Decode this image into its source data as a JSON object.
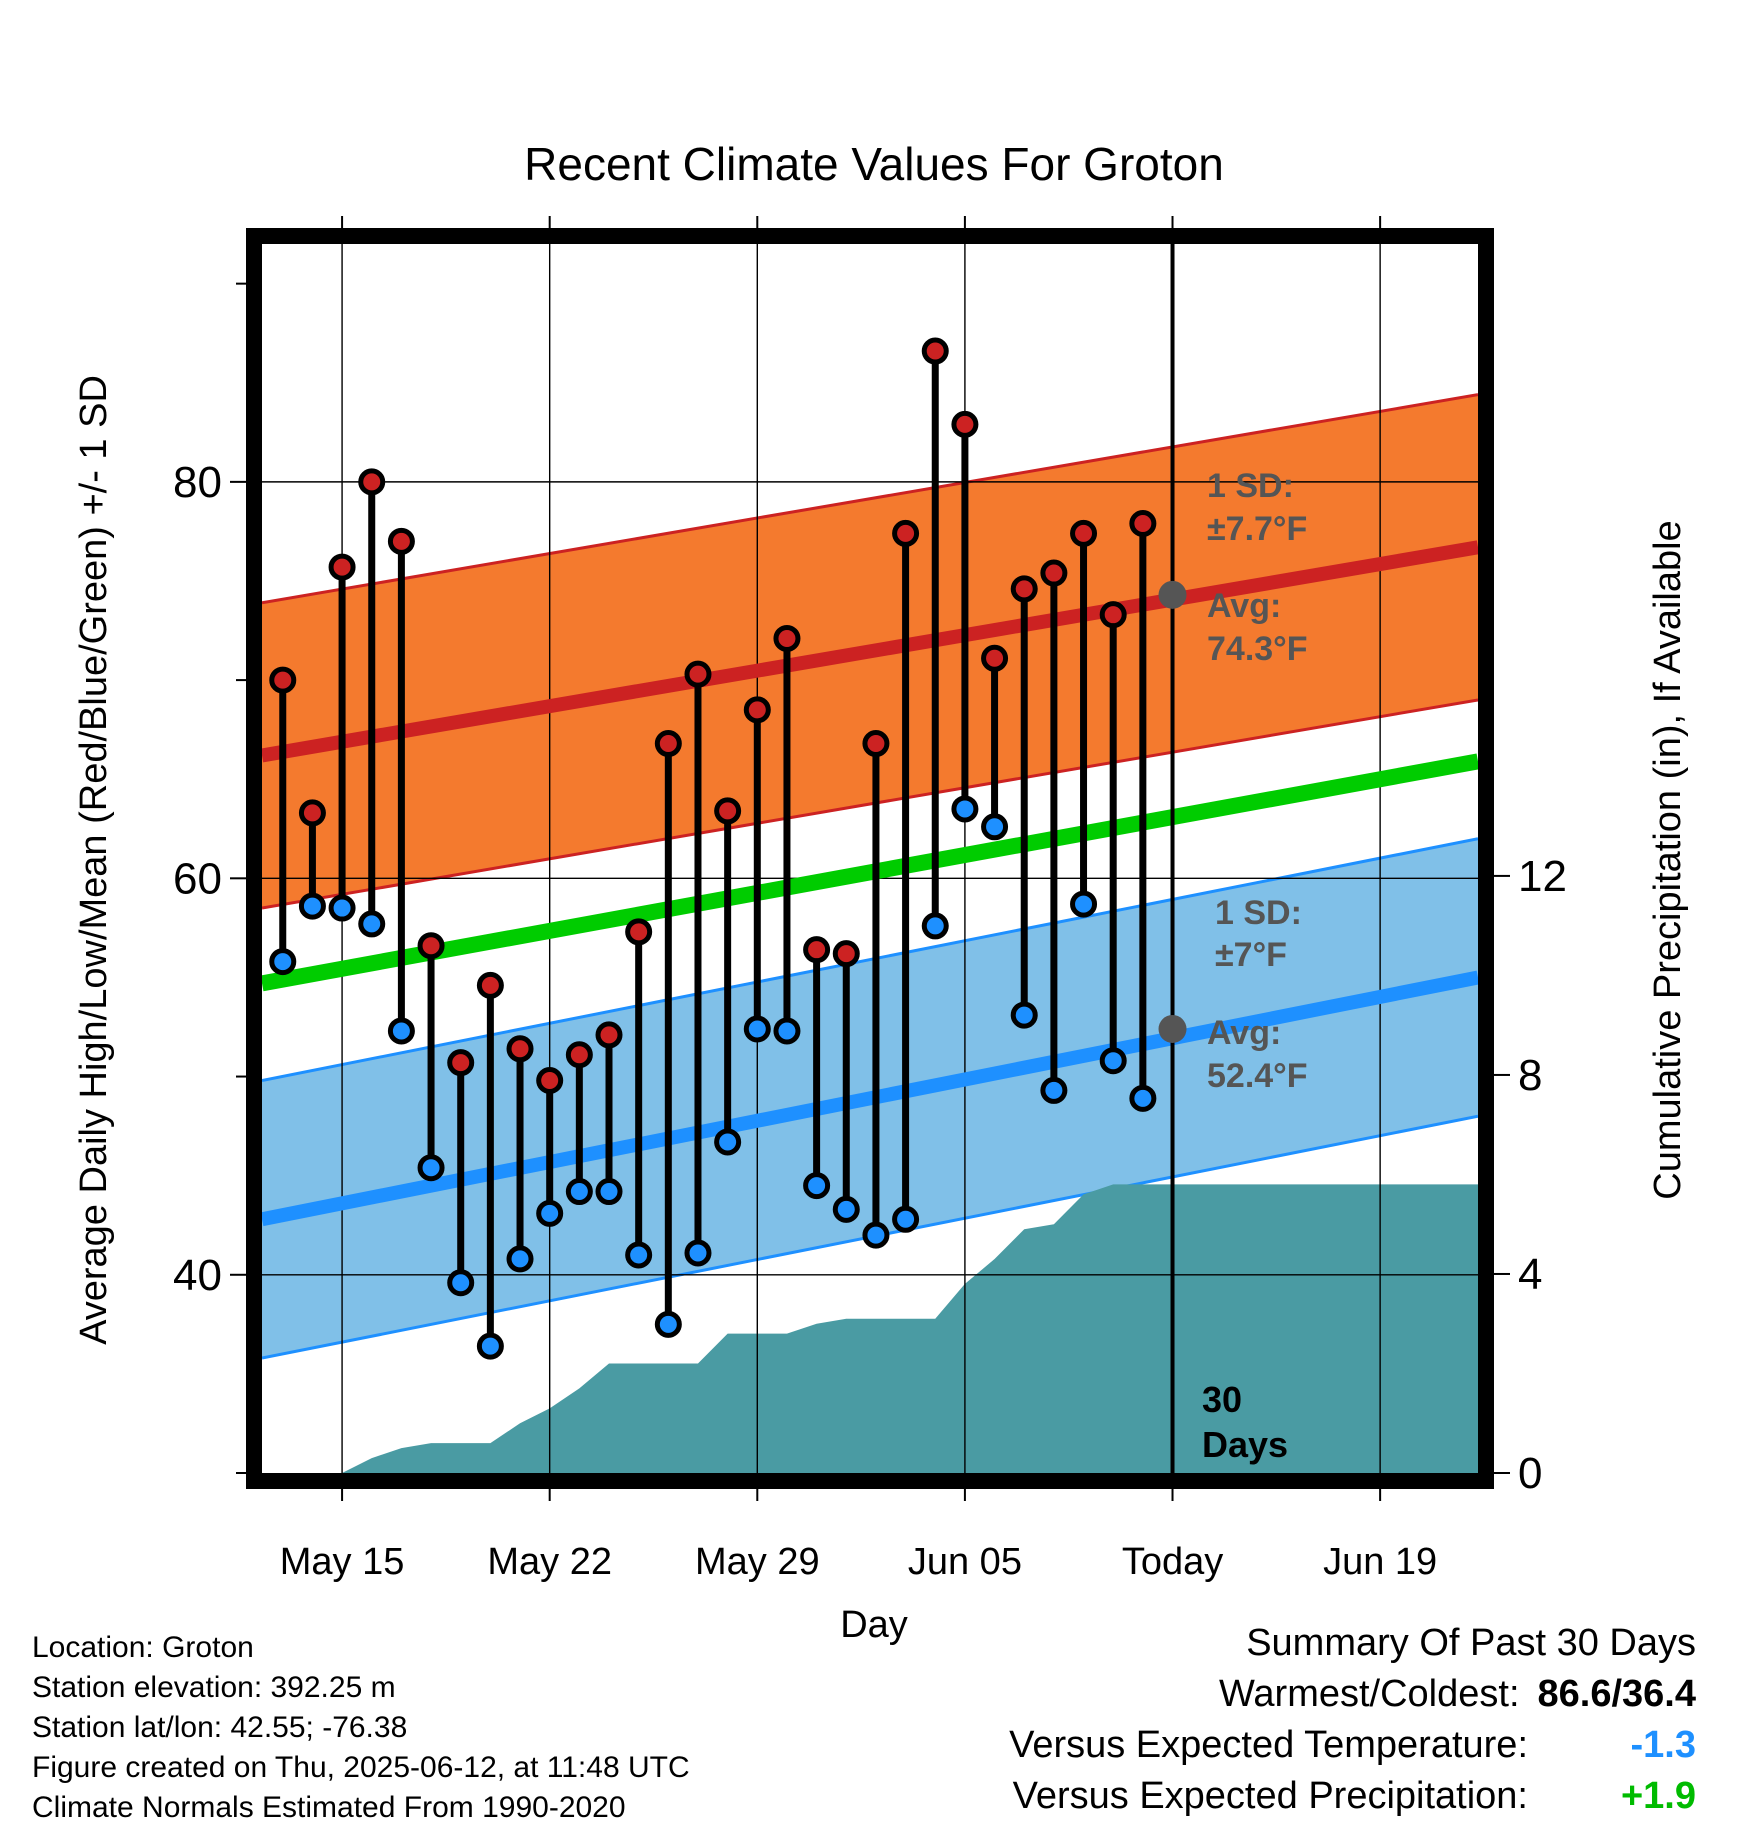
{
  "chart_data": {
    "type": "line",
    "title": "Recent Climate Values For Groton",
    "xlabel": "Day",
    "ylabel": "Average Daily High/Low/Mean (Red/Blue/Green) +/- 1 SD",
    "y2label": "Cumulative Precipitation (in), If Available",
    "x_ticks": [
      {
        "day": 15,
        "label": "May 15"
      },
      {
        "day": 22,
        "label": "May 22"
      },
      {
        "day": 29,
        "label": "May 29"
      },
      {
        "day": 36,
        "label": "Jun 05"
      },
      {
        "day": 43,
        "label": "Today"
      },
      {
        "day": 50,
        "label": "Jun 19"
      }
    ],
    "xlim": [
      12.3,
      53.3
    ],
    "ylim": [
      30,
      92
    ],
    "y_ticks": [
      40,
      60,
      80
    ],
    "y_minor_ticks": [
      30,
      50,
      70,
      90
    ],
    "y2lim": [
      0,
      24.7
    ],
    "y2_ticks": [
      0,
      4,
      8,
      12
    ],
    "grid": true,
    "today_day": 43,
    "high_obs": {
      "name": "High",
      "day": [
        13,
        14,
        15,
        16,
        17,
        18,
        19,
        20,
        21,
        22,
        23,
        24,
        25,
        26,
        27,
        28,
        29,
        30,
        31,
        32,
        33,
        34,
        35,
        36,
        37,
        38,
        39,
        40,
        41,
        42
      ],
      "values": [
        70,
        63.3,
        75.7,
        80,
        77,
        56.6,
        50.7,
        54.6,
        51.4,
        49.8,
        51.1,
        52.1,
        57.3,
        66.8,
        70.3,
        63.4,
        68.5,
        72.1,
        56.4,
        56.2,
        66.8,
        77.4,
        86.6,
        82.9,
        71.1,
        74.6,
        75.4,
        77.4,
        73.3,
        77.9
      ]
    },
    "low_obs": {
      "name": "Low",
      "day": [
        13,
        14,
        15,
        16,
        17,
        18,
        19,
        20,
        21,
        22,
        23,
        24,
        25,
        26,
        27,
        28,
        29,
        30,
        31,
        32,
        33,
        34,
        35,
        36,
        37,
        38,
        39,
        40,
        41,
        42
      ],
      "values": [
        55.8,
        58.6,
        58.5,
        57.7,
        52.3,
        45.4,
        39.6,
        36.4,
        40.8,
        43.1,
        44.2,
        44.2,
        41,
        37.5,
        41.1,
        46.7,
        52.4,
        52.3,
        44.5,
        43.3,
        42,
        42.8,
        57.6,
        63.5,
        62.6,
        53.1,
        49.3,
        58.7,
        50.8,
        48.9
      ]
    },
    "normal_high": {
      "day": [
        12.3,
        53.3
      ],
      "values": [
        66.2,
        76.7
      ],
      "sd": 7.7
    },
    "normal_mean": {
      "day": [
        12.3,
        53.3
      ],
      "values": [
        54.7,
        65.9
      ]
    },
    "normal_low": {
      "day": [
        12.3,
        53.3
      ],
      "values": [
        42.8,
        55
      ],
      "sd": 7
    },
    "precip_cumulative": {
      "day": [
        15,
        16,
        17,
        18,
        19,
        20,
        21,
        22,
        23,
        24,
        25,
        26,
        27,
        28,
        29,
        30,
        31,
        32,
        33,
        34,
        35,
        36,
        37,
        38,
        39,
        40,
        41,
        42,
        53.3
      ],
      "values": [
        0,
        0.3,
        0.5,
        0.6,
        0.6,
        0.6,
        1,
        1.3,
        1.7,
        2.2,
        2.2,
        2.2,
        2.2,
        2.8,
        2.8,
        2.8,
        3,
        3.1,
        3.1,
        3.1,
        3.1,
        3.8,
        4.3,
        4.9,
        5,
        5.6,
        5.8,
        5.8,
        5.8
      ]
    },
    "annotations": {
      "high_sd_title": "1 SD:",
      "high_sd_value": "±7.7°F",
      "high_avg_title": "Avg:",
      "high_avg_value": "74.3°F",
      "low_sd_title": "1 SD:",
      "low_sd_value": "±7°F",
      "low_avg_title": "Avg:",
      "low_avg_value": "52.4°F",
      "days_line1": "30",
      "days_line2": "Days",
      "high_avg_today": 74.3,
      "low_avg_today": 52.4
    },
    "colors": {
      "high_band": "#f47a2e",
      "high_line": "#cc2222",
      "low_band": "#80c0e8",
      "low_line": "#1e90ff",
      "mean_line": "#00cc00",
      "precip": "#4a9ba3",
      "high_dot": "#cc2222",
      "low_dot": "#1e90ff",
      "annotation": "#555555"
    }
  },
  "info": {
    "location": "Location: Groton",
    "elevation": "Station elevation: 392.25 m",
    "latlon": "Station lat/lon: 42.55; -76.38",
    "created": "Figure created on Thu, 2025-06-12, at 11:48 UTC",
    "normals": "Climate Normals Estimated From 1990-2020"
  },
  "summary": {
    "title": "Summary Of Past 30 Days",
    "warm_cold_label": "Warmest/Coldest:",
    "warm_cold_value": "86.6/36.4",
    "temp_label": "Versus Expected Temperature:",
    "temp_value": "-1.3",
    "temp_color": "#1e90ff",
    "precip_label": "Versus Expected Precipitation:",
    "precip_value": "+1.9",
    "precip_color": "#00bb00"
  }
}
